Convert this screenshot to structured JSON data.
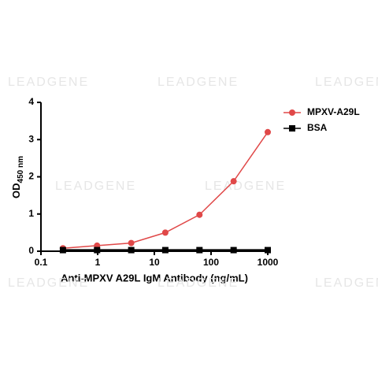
{
  "chart_data": {
    "type": "line",
    "x_label": "Anti-MPXV A29L IgM Antibody (ng/mL)",
    "y_label": "OD",
    "y_label_subscript": "450 nm",
    "watermark": "LEADGENE",
    "x": [
      0.244,
      0.977,
      3.91,
      15.6,
      62.5,
      250,
      1000
    ],
    "x_log_scale": true,
    "xlim": [
      0.1,
      1000
    ],
    "xticks": [
      0.1,
      1,
      10,
      100,
      1000
    ],
    "ylim": [
      0,
      4
    ],
    "yticks": [
      0,
      1,
      2,
      3,
      4
    ],
    "legend": "upper right",
    "series": [
      {
        "name": "MPXV-A29L",
        "color": "#e04848",
        "marker": "circle",
        "values": [
          0.08,
          0.15,
          0.22,
          0.5,
          0.98,
          1.88,
          3.2
        ]
      },
      {
        "name": "BSA",
        "color": "#000000",
        "marker": "square",
        "values": [
          0.03,
          0.03,
          0.03,
          0.03,
          0.03,
          0.03,
          0.03
        ]
      }
    ]
  }
}
